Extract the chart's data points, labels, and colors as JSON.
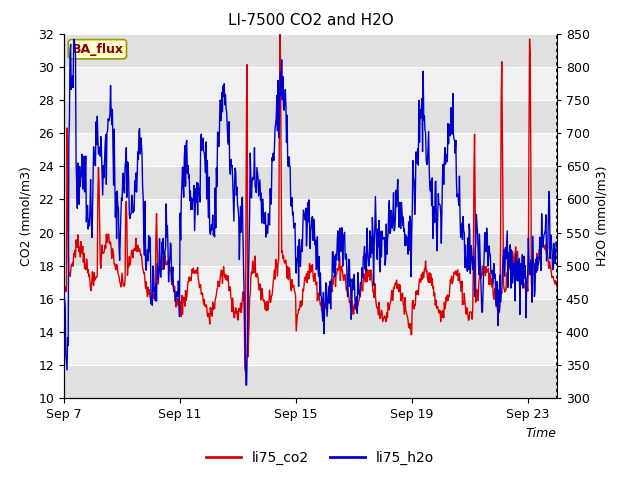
{
  "title": "LI-7500 CO2 and H2O",
  "xlabel": "Time",
  "ylabel_left": "CO2 (mmol/m3)",
  "ylabel_right": "H2O (mmol/m3)",
  "legend_label_co2": "li75_co2",
  "legend_label_h2o": "li75_h2o",
  "ba_flux_label": "BA_flux",
  "color_co2": "#dd0000",
  "color_h2o": "#0000cc",
  "ylim_left": [
    10,
    32
  ],
  "ylim_right": [
    300,
    850
  ],
  "yticks_left": [
    10,
    12,
    14,
    16,
    18,
    20,
    22,
    24,
    26,
    28,
    30,
    32
  ],
  "yticks_right": [
    300,
    350,
    400,
    450,
    500,
    550,
    600,
    650,
    700,
    750,
    800,
    850
  ],
  "xtick_labels": [
    "Sep 7",
    "Sep 11",
    "Sep 15",
    "Sep 19",
    "Sep 23"
  ],
  "bg_color": "#ffffff",
  "plot_bg_color": "#f0f0f0",
  "stripe_color": "#e0e0e0",
  "ba_flux_bg": "#ffffcc",
  "ba_flux_border": "#999900",
  "ba_flux_text_color": "#880000",
  "title_fontsize": 11,
  "axis_label_fontsize": 9,
  "tick_fontsize": 9,
  "legend_fontsize": 10
}
